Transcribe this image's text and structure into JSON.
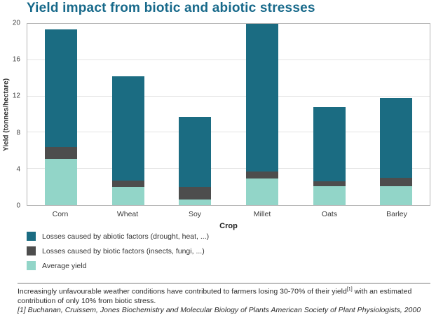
{
  "chart_data": {
    "type": "bar",
    "stacked": true,
    "title": "Yield impact from biotic and abiotic stresses",
    "xlabel": "Crop",
    "ylabel": "Yield (tonnes/hectare)",
    "categories": [
      "Corn",
      "Wheat",
      "Soy",
      "Millet",
      "Oats",
      "Barley"
    ],
    "series": [
      {
        "key": "average",
        "name": "Average yield",
        "color": "#92d5c8",
        "values": [
          5.1,
          2.0,
          0.6,
          2.9,
          2.1,
          2.1
        ]
      },
      {
        "key": "biotic",
        "name": "Losses caused by biotic factors (insects, fungi, ...)",
        "color": "#4d4d4d",
        "values": [
          1.3,
          0.7,
          1.4,
          0.8,
          0.5,
          0.9
        ]
      },
      {
        "key": "abiotic",
        "name": "Losses caused by abiotic factors (drought, heat, ...)",
        "color": "#1b6c82",
        "values": [
          13.0,
          11.5,
          7.7,
          16.3,
          8.2,
          8.8
        ]
      }
    ],
    "totals": [
      19.4,
      14.2,
      9.7,
      20.0,
      10.8,
      11.8
    ],
    "ylim": [
      0,
      20
    ],
    "yticks": [
      0,
      4,
      8,
      12,
      16,
      20
    ],
    "grid": "horizontal",
    "legend_position": "bottom-left",
    "legend_order_top_to_bottom": [
      "abiotic",
      "biotic",
      "average"
    ]
  },
  "colors": {
    "title": "#17698a",
    "plot_border": "#b5b5b5",
    "gridline": "#e2e2e2"
  },
  "footer": {
    "line1_before_sup": "Increasingly unfavourable weather conditions have contributed to farmers losing 30-70% of their yield",
    "sup": "[1]",
    "line1_after_sup": " with an estimated",
    "line2": "contribution of only 10% from biotic stress.",
    "reference": "[1] Buchanan, Cruissem, Jones Biochemistry and Molecular Biology of Plants American Society of Plant Physiologists, 2000"
  }
}
